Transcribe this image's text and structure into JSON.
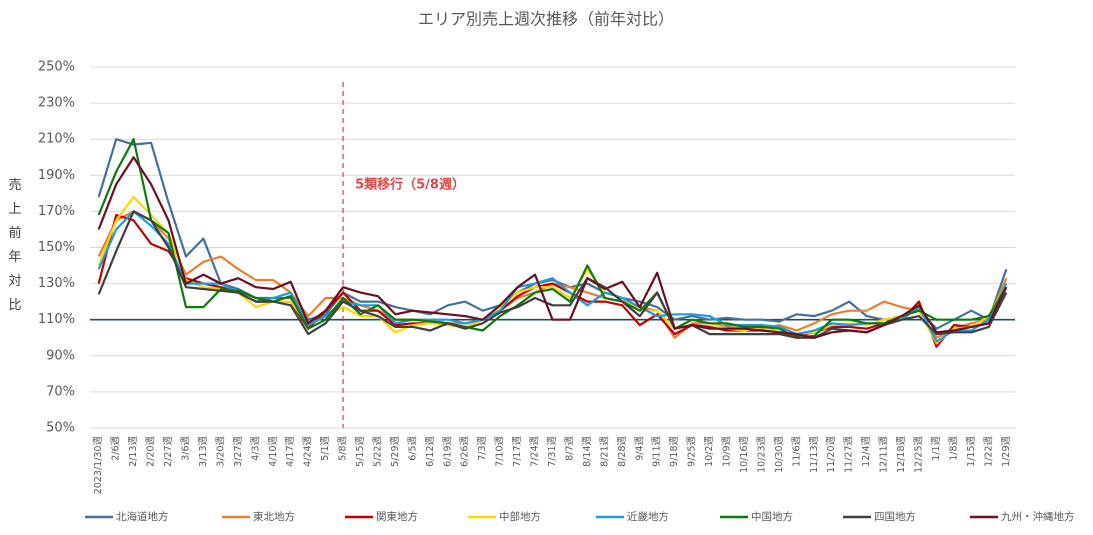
{
  "chart_data": {
    "type": "line",
    "title": "エリア別売上週次推移（前年対比）",
    "y_label": "売上前年対比",
    "categories": [
      "2023/1/30週",
      "2/6週",
      "2/13週",
      "2/20週",
      "2/27週",
      "3/6週",
      "3/13週",
      "3/20週",
      "3/27週",
      "4/3週",
      "4/10週",
      "4/17週",
      "4/24週",
      "5/1週",
      "5/8週",
      "5/15週",
      "5/22週",
      "5/29週",
      "6/5週",
      "6/12週",
      "6/19週",
      "6/26週",
      "7/3週",
      "7/10週",
      "7/17週",
      "7/24週",
      "7/31週",
      "8/7週",
      "8/14週",
      "8/21週",
      "8/28週",
      "9/4週",
      "9/11週",
      "9/18週",
      "9/25週",
      "10/2週",
      "10/9週",
      "10/16週",
      "10/23週",
      "10/30週",
      "11/6週",
      "11/13週",
      "11/20週",
      "11/27週",
      "12/4週",
      "12/11週",
      "12/18週",
      "12/25週",
      "1/1週",
      "1/8週",
      "1/15週",
      "1/22週",
      "1/29週"
    ],
    "series": [
      {
        "name": "北海道地方",
        "color": "#44719c",
        "values": [
          178,
          210,
          207,
          208,
          175,
          145,
          155,
          130,
          127,
          122,
          122,
          122,
          110,
          113,
          125,
          120,
          120,
          117,
          115,
          113,
          118,
          120,
          115,
          118,
          125,
          130,
          132,
          128,
          130,
          125,
          122,
          120,
          117,
          110,
          112,
          110,
          111,
          110,
          110,
          109,
          113,
          112,
          115,
          120,
          112,
          110,
          112,
          115,
          105,
          110,
          115,
          110,
          138
        ]
      },
      {
        "name": "東北地方",
        "color": "#ed7d31",
        "values": [
          145,
          165,
          170,
          165,
          155,
          135,
          142,
          145,
          138,
          132,
          132,
          125,
          112,
          122,
          122,
          118,
          115,
          110,
          110,
          110,
          108,
          108,
          110,
          115,
          122,
          125,
          130,
          128,
          125,
          122,
          120,
          117,
          115,
          100,
          108,
          108,
          106,
          105,
          105,
          107,
          104,
          108,
          113,
          115,
          115,
          120,
          117,
          115,
          100,
          105,
          108,
          110,
          133
        ]
      },
      {
        "name": "関東地方",
        "color": "#c00000",
        "values": [
          130,
          168,
          165,
          152,
          148,
          133,
          130,
          128,
          125,
          120,
          120,
          120,
          105,
          115,
          125,
          115,
          115,
          107,
          108,
          108,
          108,
          106,
          110,
          115,
          123,
          128,
          130,
          125,
          120,
          120,
          118,
          107,
          113,
          102,
          107,
          106,
          104,
          104,
          104,
          103,
          101,
          103,
          106,
          106,
          105,
          108,
          110,
          120,
          95,
          107,
          106,
          108,
          128
        ]
      },
      {
        "name": "中部地方",
        "color": "#ffd700",
        "values": [
          140,
          165,
          178,
          168,
          158,
          132,
          128,
          127,
          125,
          117,
          120,
          120,
          107,
          112,
          117,
          112,
          112,
          103,
          107,
          108,
          107,
          106,
          110,
          117,
          125,
          128,
          128,
          122,
          138,
          125,
          122,
          115,
          115,
          105,
          110,
          108,
          105,
          104,
          106,
          103,
          102,
          103,
          107,
          108,
          107,
          110,
          112,
          115,
          97,
          105,
          106,
          112,
          130
        ]
      },
      {
        "name": "近畿地方",
        "color": "#1f9bde",
        "values": [
          138,
          160,
          170,
          162,
          152,
          130,
          130,
          130,
          125,
          120,
          122,
          125,
          107,
          112,
          120,
          118,
          118,
          108,
          110,
          110,
          110,
          108,
          110,
          115,
          128,
          130,
          133,
          125,
          118,
          125,
          122,
          117,
          112,
          113,
          113,
          112,
          107,
          107,
          107,
          106,
          102,
          104,
          108,
          107,
          108,
          108,
          110,
          117,
          98,
          104,
          104,
          110,
          130
        ]
      },
      {
        "name": "中国地方",
        "color": "#0e7a0d",
        "values": [
          168,
          192,
          210,
          165,
          158,
          117,
          117,
          127,
          126,
          122,
          120,
          123,
          105,
          110,
          122,
          113,
          118,
          110,
          110,
          109,
          108,
          106,
          104,
          112,
          118,
          125,
          127,
          120,
          140,
          122,
          120,
          115,
          125,
          105,
          110,
          108,
          108,
          106,
          106,
          105,
          100,
          101,
          110,
          110,
          108,
          108,
          112,
          115,
          110,
          110,
          110,
          112,
          128
        ]
      },
      {
        "name": "四国地方",
        "color": "#404040",
        "values": [
          124,
          148,
          170,
          165,
          150,
          128,
          127,
          126,
          125,
          120,
          120,
          118,
          102,
          108,
          120,
          115,
          112,
          106,
          106,
          104,
          108,
          105,
          108,
          114,
          117,
          122,
          118,
          118,
          133,
          128,
          120,
          112,
          125,
          105,
          107,
          102,
          102,
          102,
          102,
          102,
          100,
          100,
          105,
          104,
          103,
          107,
          110,
          112,
          102,
          103,
          103,
          106,
          125
        ]
      },
      {
        "name": "九州・沖縄地方",
        "color": "#6b1020",
        "values": [
          160,
          185,
          200,
          185,
          165,
          130,
          135,
          130,
          133,
          128,
          127,
          131,
          108,
          115,
          128,
          125,
          123,
          113,
          115,
          114,
          113,
          112,
          110,
          118,
          128,
          135,
          110,
          110,
          133,
          127,
          131,
          117,
          136,
          105,
          107,
          105,
          105,
          105,
          104,
          103,
          102,
          100,
          103,
          104,
          103,
          107,
          112,
          118,
          103,
          104,
          106,
          108,
          128
        ]
      }
    ],
    "ylim": [
      50,
      250
    ],
    "yticks": [
      {
        "value": 50,
        "label": "50%"
      },
      {
        "value": 70,
        "label": "70%"
      },
      {
        "value": 90,
        "label": "90%"
      },
      {
        "value": 110,
        "label": "110%"
      },
      {
        "value": 130,
        "label": "130%"
      },
      {
        "value": 150,
        "label": "150%"
      },
      {
        "value": 170,
        "label": "170%"
      },
      {
        "value": 190,
        "label": "190%"
      },
      {
        "value": 210,
        "label": "210%"
      },
      {
        "value": 230,
        "label": "230%"
      },
      {
        "value": 250,
        "label": "250%"
      }
    ],
    "grid": true,
    "reference_line": {
      "value": 110,
      "color": "#1e4d5c"
    },
    "annotation": {
      "text": "5類移行（5/8週）",
      "category": "5/8週",
      "color": "#e04848"
    },
    "legend": "bottom"
  }
}
